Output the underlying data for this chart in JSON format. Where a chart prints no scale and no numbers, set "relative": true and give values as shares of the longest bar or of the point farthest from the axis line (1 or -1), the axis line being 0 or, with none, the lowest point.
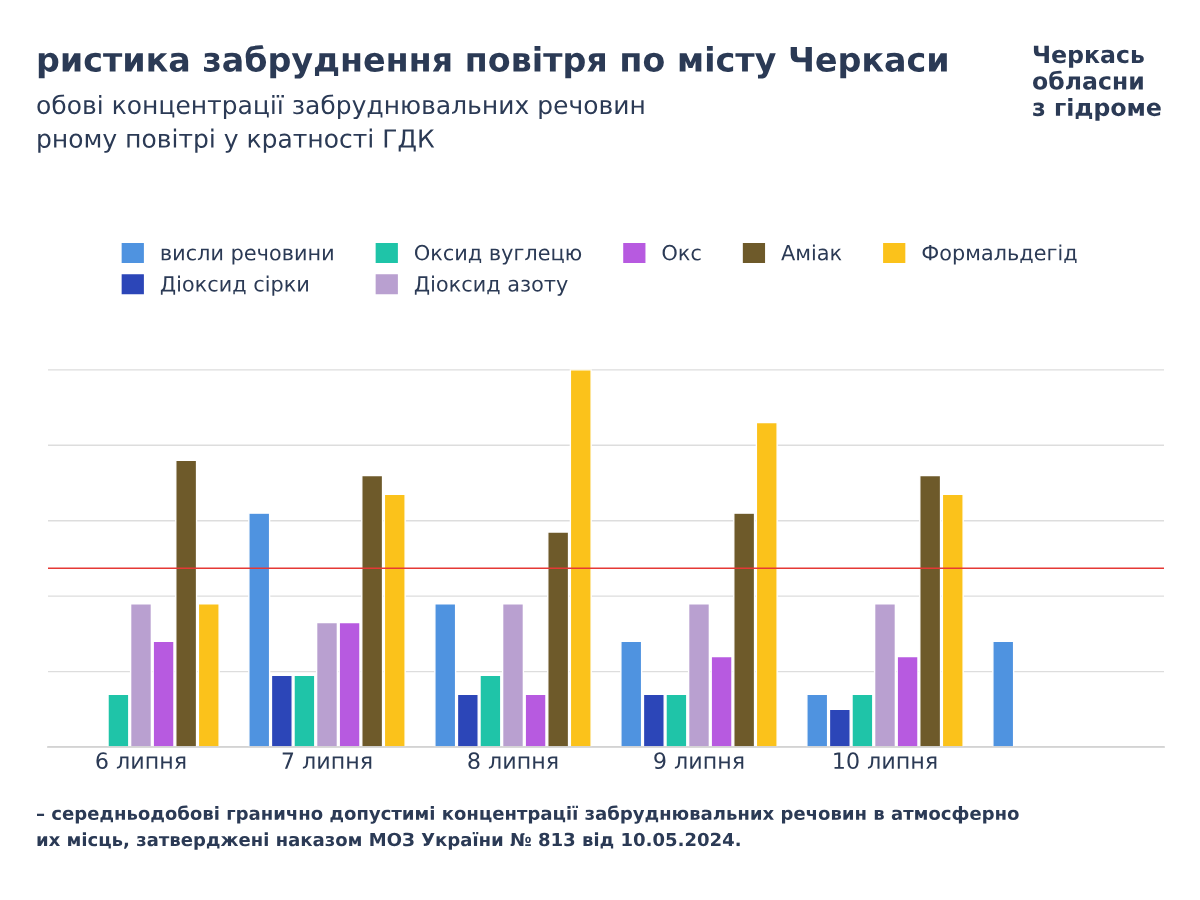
{
  "chart_data": {
    "type": "bar",
    "title": "ристика забруднення повітря по місту Черкаси",
    "subtitle": "обові концентрації забруднювальних речовин\nрному повітрі у кратності ГДК",
    "categories": [
      "6 липня",
      "7 липня",
      "8 липня",
      "9 липня",
      "10 липня",
      null
    ],
    "relative": true,
    "series": [
      {
        "name": "висли речовини",
        "color": "#4f93e0",
        "values": [
          null,
          0.62,
          0.38,
          0.28,
          0.14,
          0.28
        ]
      },
      {
        "name": "Діоксид сірки",
        "color": "#2c46b8",
        "values": [
          null,
          0.19,
          0.14,
          0.14,
          0.1,
          null
        ]
      },
      {
        "name": "Оксид вуглецю",
        "color": "#1fc4a8",
        "values": [
          0.14,
          0.19,
          0.19,
          0.14,
          0.14,
          null
        ]
      },
      {
        "name": "Діоксид азоту",
        "color": "#b9a0d0",
        "values": [
          0.38,
          0.33,
          0.38,
          0.38,
          0.38,
          null
        ]
      },
      {
        "name": "Окс",
        "color": "#b75ae0",
        "values": [
          0.28,
          0.33,
          0.14,
          0.24,
          0.24,
          null
        ]
      },
      {
        "name": "Аміак",
        "color": "#6e5a2a",
        "values": [
          0.76,
          0.72,
          0.57,
          0.62,
          0.72,
          null
        ]
      },
      {
        "name": "Формальдегід",
        "color": "#fbc21b",
        "values": [
          0.38,
          0.67,
          1,
          0.86,
          0.67,
          null
        ]
      }
    ],
    "ref_lines": [
      {
        "axis": "y",
        "value": 0.474,
        "label": null,
        "color": "#e53935"
      }
    ],
    "grid": "y",
    "legend": "top",
    "annotations": [
      "– середньодобові гранично допустимі концентрації забруднювальних речовин в атмосферно\nих місць, затверджені наказом МОЗ України № 813 від 10.05.2024.",
      "Черкась\nобласни\nз гідроме"
    ]
  }
}
